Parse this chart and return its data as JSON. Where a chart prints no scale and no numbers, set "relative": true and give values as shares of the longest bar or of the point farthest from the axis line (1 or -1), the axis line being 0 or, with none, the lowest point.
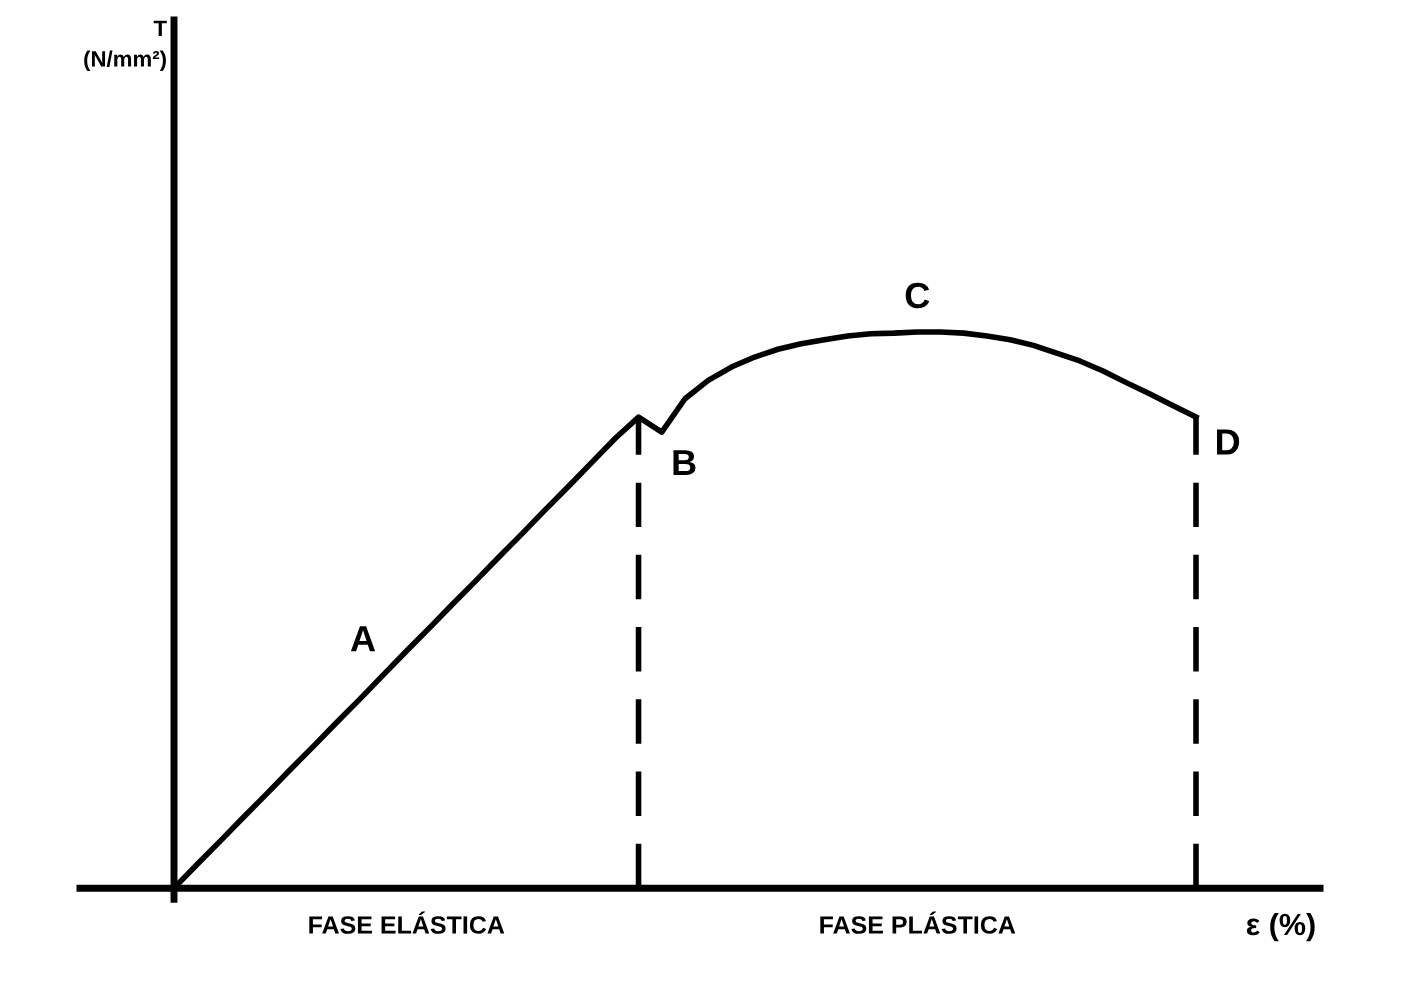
{
  "chart_data": {
    "type": "line",
    "relative": true,
    "xlabel": "ε (%)",
    "categories": [
      null,
      null,
      null,
      null,
      null,
      null,
      null,
      null,
      null,
      null,
      null,
      null,
      null,
      null,
      null,
      null,
      null,
      null,
      null,
      null,
      null,
      null,
      null,
      null,
      null,
      null,
      null,
      null,
      null,
      null,
      null,
      null,
      null,
      null,
      null,
      null,
      null,
      null,
      null,
      null,
      null,
      null,
      null,
      null,
      null
    ],
    "series": [
      {
        "color": "#000000",
        "values": [
          0,
          0.043,
          0.085,
          0.128,
          0.17,
          0.213,
          0.255,
          0.298,
          0.34,
          0.383,
          0.426,
          0.468,
          0.511,
          0.553,
          0.596,
          0.638,
          0.681,
          0.723,
          0.766,
          0.809,
          0.847,
          0.82,
          0.88,
          0.913,
          0.937,
          0.955,
          0.969,
          0.979,
          0.986,
          0.993,
          0.997,
          0.998,
          1.0,
          1.0,
          0.998,
          0.993,
          0.986,
          0.976,
          0.962,
          0.948,
          0.93,
          0.909,
          0.889,
          0.868,
          0.847
        ]
      }
    ],
    "annotations": [
      "T\n(N/mm²)",
      "A",
      "B",
      "C",
      "D",
      "FASE ELÁSTICA",
      "FASE PLÁSTICA"
    ],
    "marker": "none",
    "line_style": "solid",
    "tick_labels": false
  }
}
